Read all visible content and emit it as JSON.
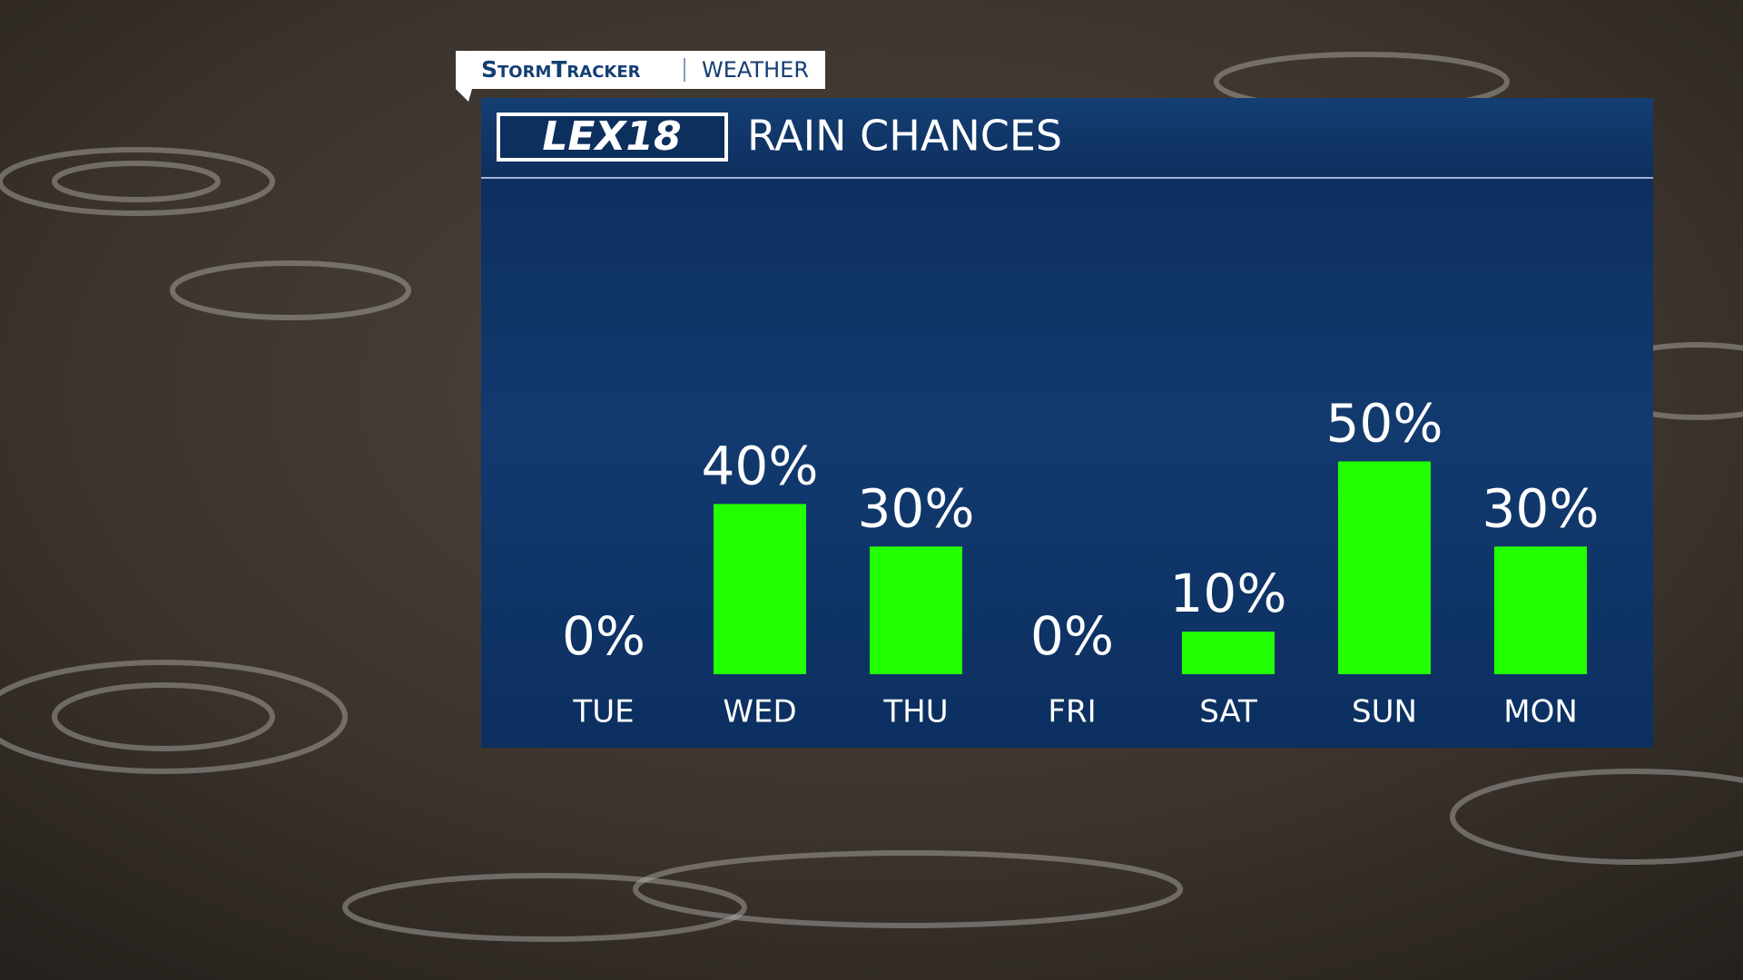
{
  "header": {
    "tag": "StormTracker",
    "section": "WEATHER",
    "brand": "LEX18"
  },
  "chart_data": {
    "type": "bar",
    "title": "RAIN CHANCES",
    "categories": [
      "TUE",
      "WED",
      "THU",
      "FRI",
      "SAT",
      "SUN",
      "MON"
    ],
    "values": [
      0,
      40,
      30,
      0,
      10,
      50,
      30
    ],
    "value_labels": [
      "0%",
      "40%",
      "30%",
      "0%",
      "10%",
      "50%",
      "30%"
    ],
    "color": "#22ff00"
  }
}
